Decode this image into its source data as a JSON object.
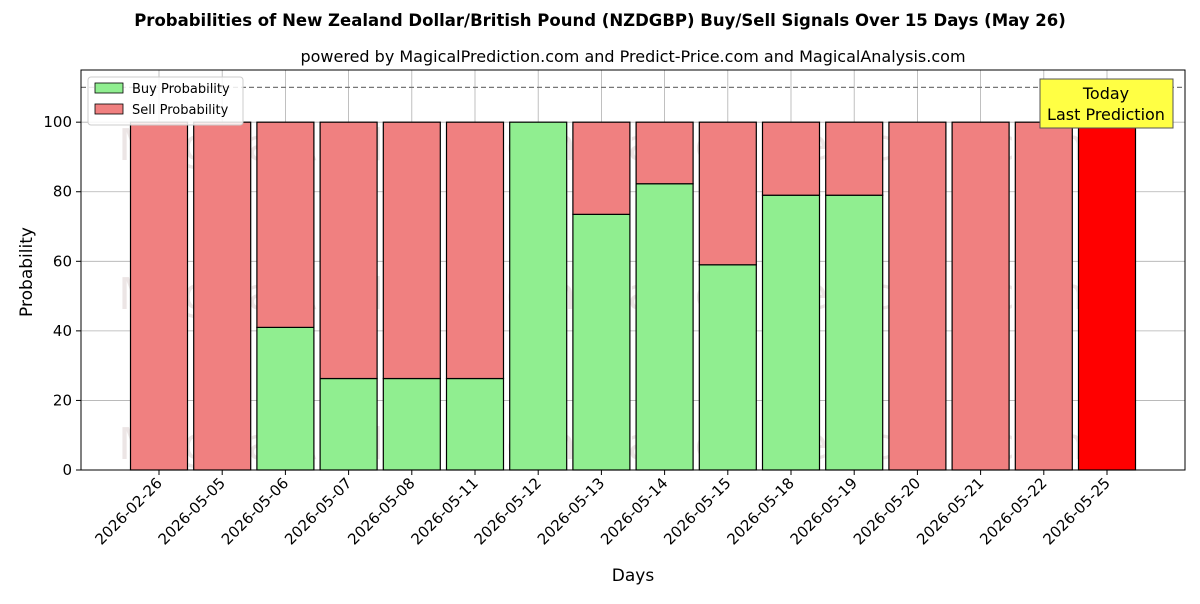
{
  "chart_data": {
    "type": "bar",
    "stacked": true,
    "title": "Probabilities of New Zealand Dollar/British Pound (NZDGBP) Buy/Sell Signals Over 15 Days (May 26)",
    "subtitle": "powered by MagicalPrediction.com and Predict-Price.com and MagicalAnalysis.com",
    "xlabel": "Days",
    "ylabel": "Probability",
    "ylim": [
      0,
      115
    ],
    "yticks": [
      0,
      20,
      40,
      60,
      80,
      100
    ],
    "reference_line": 110,
    "grid": true,
    "legend_position": "top-left",
    "categories": [
      "2026-02-26",
      "2026-05-05",
      "2026-05-06",
      "2026-05-07",
      "2026-05-08",
      "2026-05-11",
      "2026-05-12",
      "2026-05-13",
      "2026-05-14",
      "2026-05-15",
      "2026-05-18",
      "2026-05-19",
      "2026-05-20",
      "2026-05-21",
      "2026-05-22",
      "2026-05-25"
    ],
    "series": [
      {
        "name": "Buy Probability",
        "color": "#90ee90",
        "values": [
          0,
          0,
          41,
          26.3,
          26.3,
          26.3,
          100,
          73.5,
          82.3,
          59,
          79,
          79,
          0,
          0,
          0,
          0
        ]
      },
      {
        "name": "Sell Probability",
        "color": "#f08080",
        "values": [
          100,
          100,
          59,
          73.7,
          73.7,
          73.7,
          0,
          26.5,
          17.7,
          41,
          21,
          21,
          100,
          100,
          100,
          100
        ]
      }
    ],
    "highlight": {
      "category": "2026-05-25",
      "color": "#ff0000"
    },
    "annotation": {
      "line1": "Today",
      "line2": "Last Prediction",
      "background": "#ffff44"
    },
    "watermarks": [
      "MagicalAnalysis.com",
      "MagicalPrediction.com"
    ]
  }
}
